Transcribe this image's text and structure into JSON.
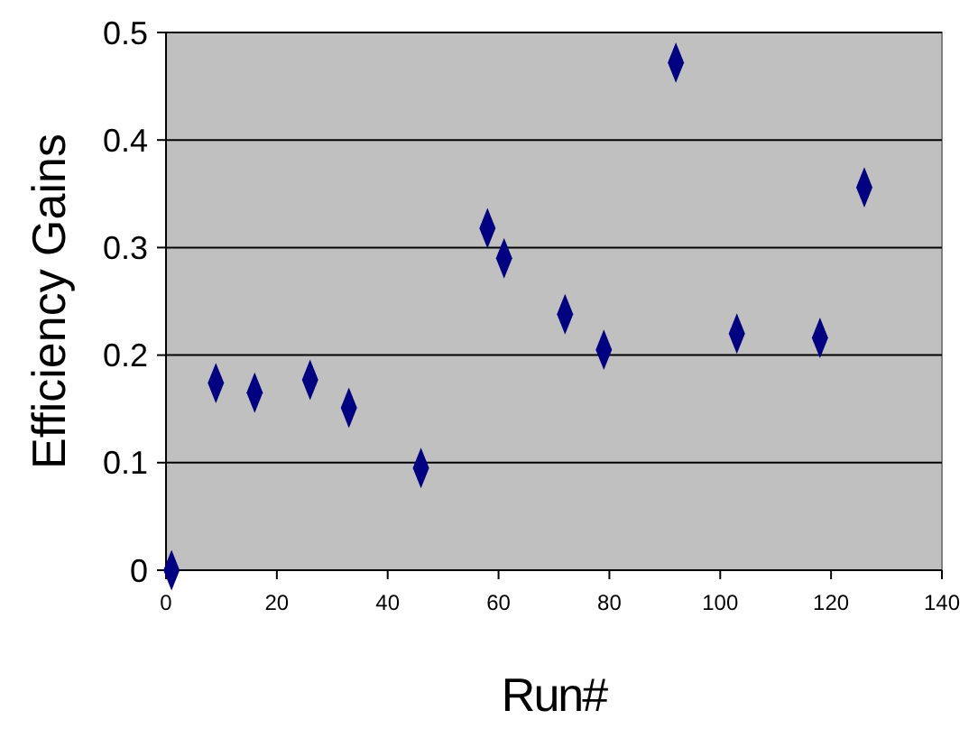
{
  "chart_data": {
    "type": "scatter",
    "xlabel": "Run#",
    "ylabel": "Efficiency Gains",
    "x": [
      1,
      9,
      16,
      26,
      33,
      46,
      58,
      61,
      72,
      79,
      92,
      103,
      118,
      126
    ],
    "series": [
      {
        "color": "#000080",
        "values": [
          0,
          0.174,
          0.165,
          0.177,
          0.151,
          0.095,
          0.318,
          0.29,
          0.238,
          0.205,
          0.472,
          0.22,
          0.216,
          0.356
        ]
      }
    ],
    "xlim": [
      0,
      140
    ],
    "xticks": [
      0,
      20,
      40,
      60,
      80,
      100,
      120,
      140
    ],
    "ylim": [
      0,
      0.5
    ],
    "yticks": [
      0,
      0.1,
      0.2,
      0.3,
      0.4,
      0.5
    ],
    "grid": "y",
    "marker": "diamond"
  }
}
